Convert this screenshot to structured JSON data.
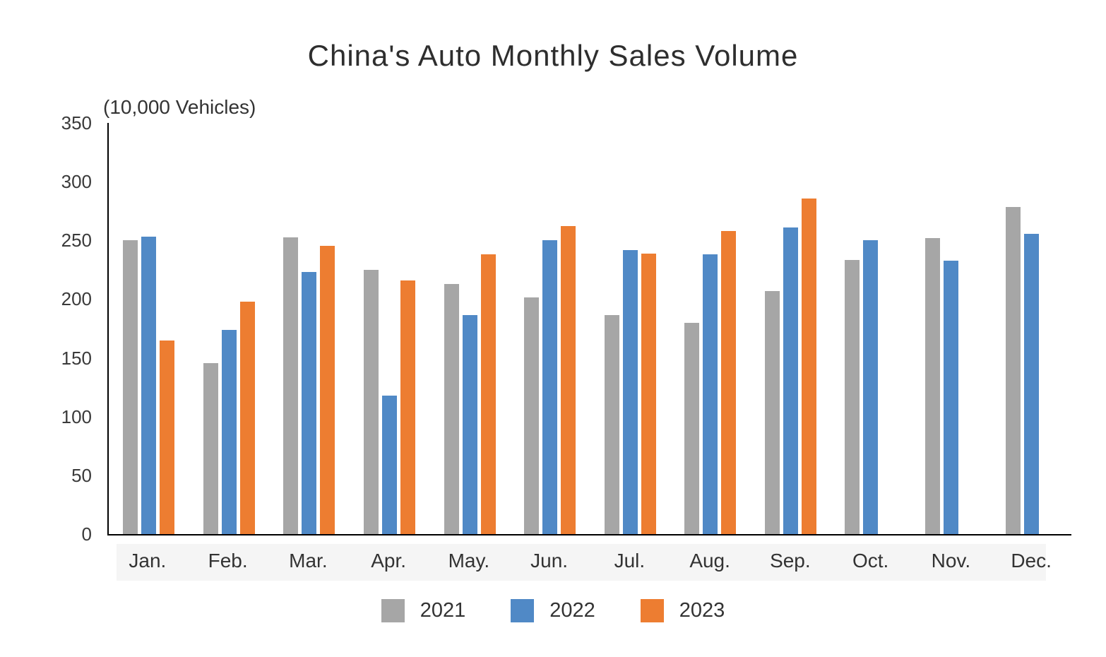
{
  "chart_data": {
    "type": "bar",
    "title": "China's Auto Monthly Sales Volume",
    "unit_label": "(10,000 Vehicles)",
    "categories": [
      "Jan.",
      "Feb.",
      "Mar.",
      "Apr.",
      "May.",
      "Jun.",
      "Jul.",
      "Aug.",
      "Sep.",
      "Oct.",
      "Nov.",
      "Dec."
    ],
    "series": [
      {
        "name": "2021",
        "color": "#A6A6A6",
        "values": [
          250.3,
          145.5,
          252.6,
          225.2,
          212.8,
          201.5,
          186.4,
          179.9,
          206.7,
          233.3,
          252.2,
          278.6
        ]
      },
      {
        "name": "2022",
        "color": "#5089C6",
        "values": [
          253.1,
          173.7,
          223.4,
          118.1,
          186.2,
          250.2,
          242.0,
          238.3,
          261.0,
          250.5,
          232.8,
          255.6
        ]
      },
      {
        "name": "2023",
        "color": "#ED7D31",
        "values": [
          164.9,
          197.6,
          245.1,
          215.9,
          238.0,
          262.2,
          238.7,
          258.2,
          285.8,
          null,
          null,
          null
        ]
      }
    ],
    "y_ticks": [
      0,
      50,
      100,
      150,
      200,
      250,
      300,
      350
    ],
    "ylim": [
      0,
      350
    ],
    "grid": false,
    "legend_position": "bottom",
    "axis_color": "#000000",
    "text_color": "#333333",
    "month_band_color": "#F5F5F5"
  }
}
